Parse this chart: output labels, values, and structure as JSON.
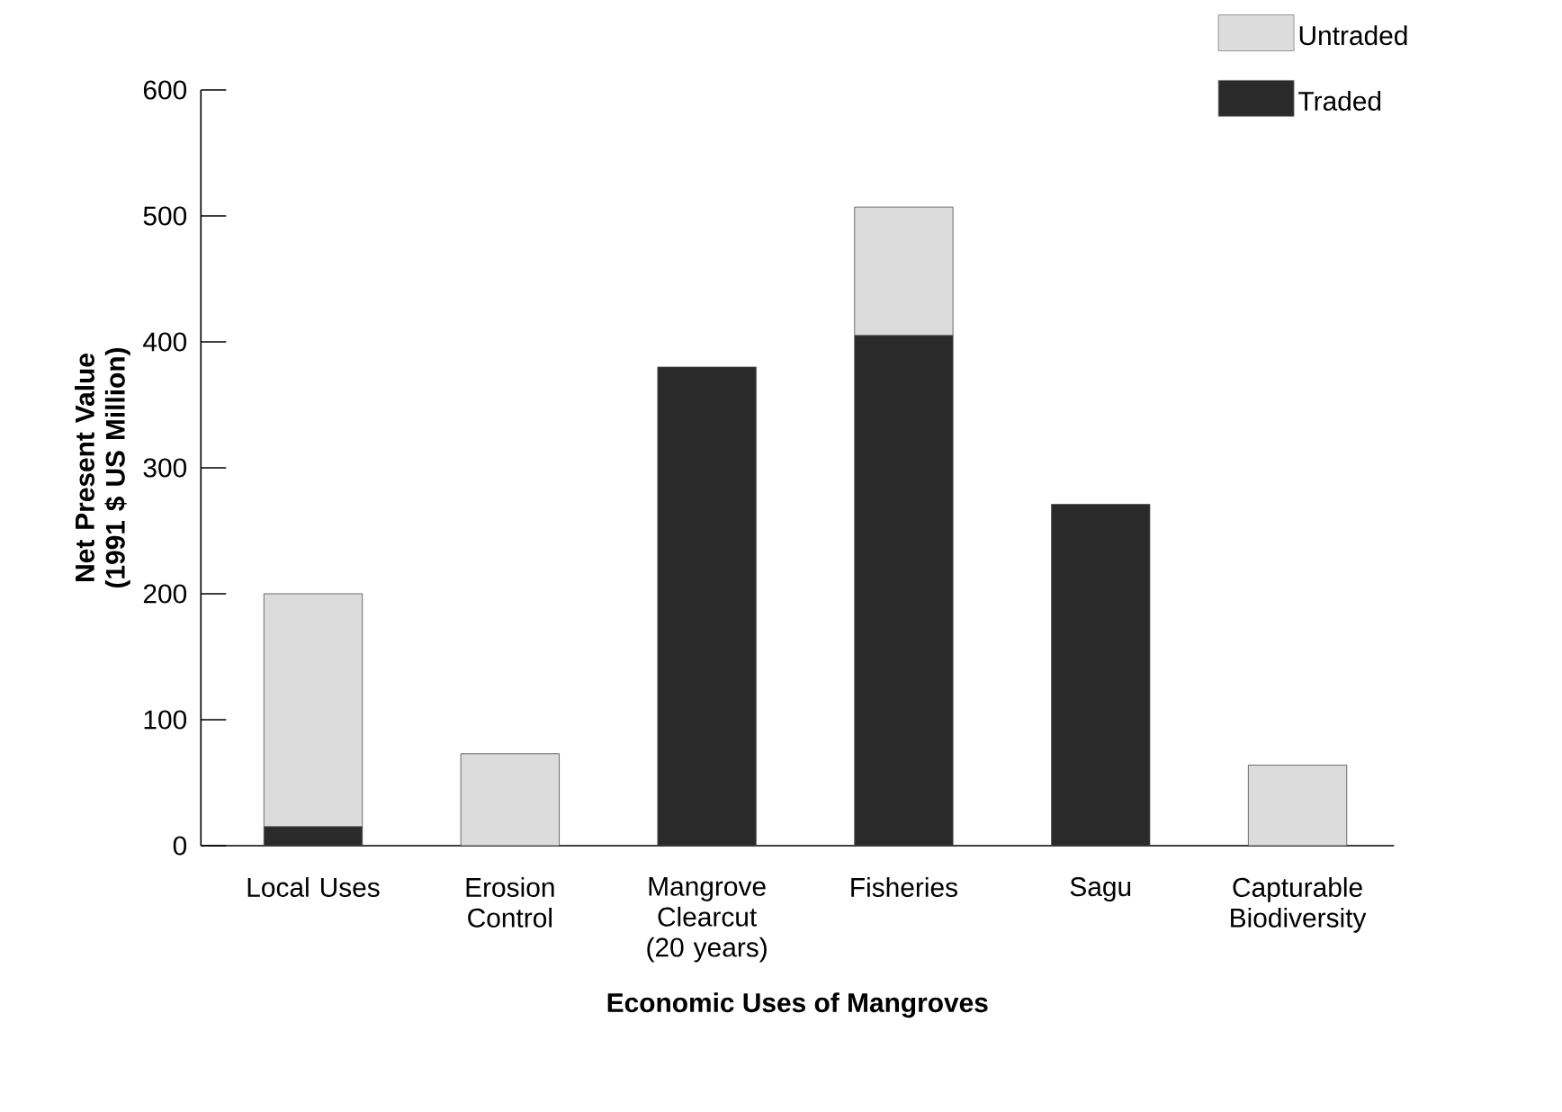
{
  "chart_data": {
    "type": "bar",
    "stacked": true,
    "xlabel": "Economic Uses of Mangroves",
    "ylabel": "Net Present Value (1991 $ US Million)",
    "categories": [
      "Local Uses",
      "Erosion Control",
      "Mangrove Clearcut (20 years)",
      "Fisheries",
      "Sagu",
      "Capturable Biodiversity"
    ],
    "series": [
      {
        "name": "Traded",
        "color": "#2a2a2a",
        "values": [
          15,
          0,
          380,
          405,
          271,
          0
        ]
      },
      {
        "name": "Untraded",
        "color": "#dcdcdc",
        "values": [
          185,
          73,
          0,
          102,
          0,
          64
        ]
      }
    ],
    "ylim": [
      0,
      600
    ],
    "yticks": [
      0,
      100,
      200,
      300,
      400,
      500,
      600
    ],
    "legend": "top right",
    "grid": false
  }
}
